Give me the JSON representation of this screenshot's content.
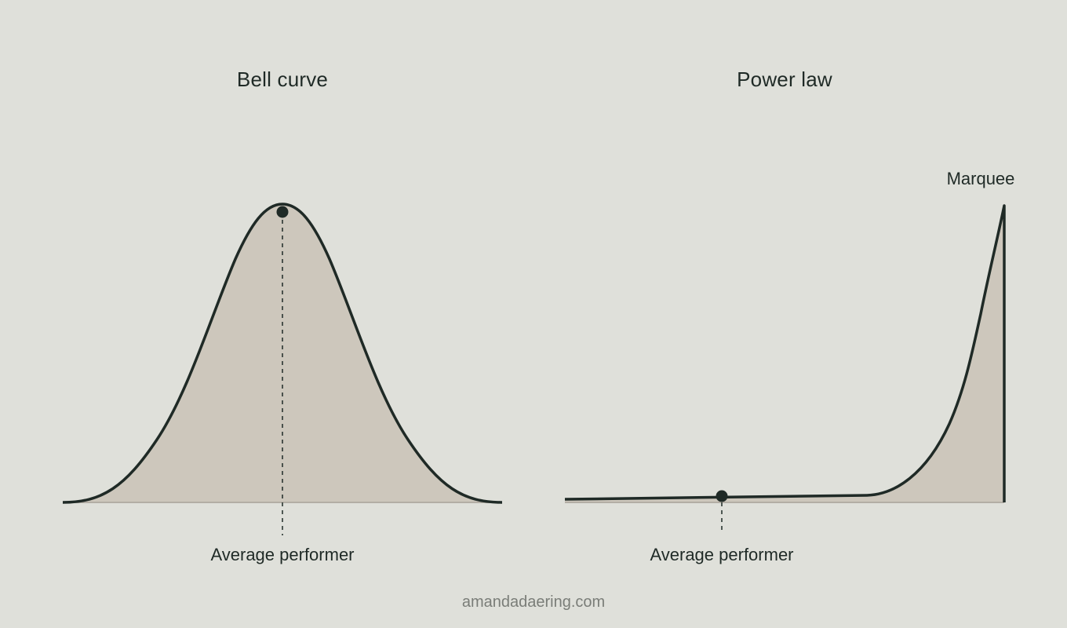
{
  "colors": {
    "background": "#dfe0da",
    "fill": "#cdc7bc",
    "stroke": "#1f2a26",
    "baseline": "#b3aea5",
    "footer_text": "#7a7d78"
  },
  "bell_curve": {
    "title": "Bell curve",
    "marker_label": "Average performer"
  },
  "power_law": {
    "title": "Power law",
    "marker_label": "Average performer",
    "peak_label": "Marquee"
  },
  "footer": {
    "text": "amandadaering.com"
  }
}
